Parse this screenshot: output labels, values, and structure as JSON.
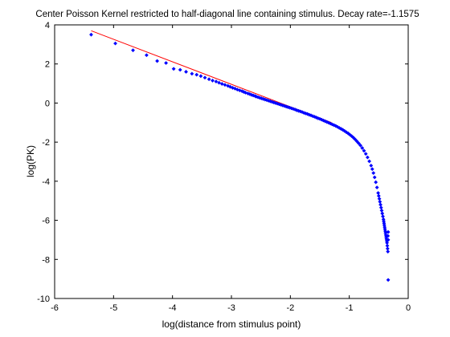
{
  "chart_data": {
    "type": "scatter",
    "title": "Center Poisson Kernel restricted to half-diagonal line containing stimulus.  Decay rate=-1.1575",
    "xlabel": "log(distance from stimulus point)",
    "ylabel": "log(PK)",
    "xlim": [
      -6,
      0
    ],
    "ylim": [
      -10,
      4
    ],
    "xticks": [
      -6,
      -5,
      -4,
      -3,
      -2,
      -1,
      0
    ],
    "yticks": [
      -10,
      -8,
      -6,
      -4,
      -2,
      0,
      2,
      4
    ],
    "grid": false,
    "colors": {
      "points": "#0000ff",
      "fit_line": "#ff0000",
      "axes": "#000000"
    },
    "fit_line": {
      "name": "",
      "x": [
        -5.38,
        -1.3
      ],
      "y": [
        3.7,
        -1.0
      ]
    },
    "series": [
      {
        "name": "",
        "marker": "diamond",
        "x": [
          -5.38,
          -4.97,
          -4.67,
          -4.44,
          -4.26,
          -4.11,
          -3.98,
          -3.87,
          -3.77,
          -3.67,
          -3.59,
          -3.52,
          -3.45,
          -3.38,
          -3.32,
          -3.26,
          -3.21,
          -3.16,
          -3.11,
          -3.06,
          -3.02,
          -2.98,
          -2.94,
          -2.9,
          -2.86,
          -2.82,
          -2.79,
          -2.76,
          -2.72,
          -2.69,
          -2.66,
          -2.63,
          -2.6,
          -2.58,
          -2.55,
          -2.52,
          -2.49,
          -2.46,
          -2.43,
          -2.4,
          -2.37,
          -2.34,
          -2.31,
          -2.28,
          -2.25,
          -2.22,
          -2.19,
          -2.16,
          -2.13,
          -2.1,
          -2.07,
          -2.04,
          -2.01,
          -1.98,
          -1.95,
          -1.92,
          -1.89,
          -1.86,
          -1.83,
          -1.8,
          -1.77,
          -1.74,
          -1.71,
          -1.68,
          -1.65,
          -1.62,
          -1.59,
          -1.56,
          -1.53,
          -1.5,
          -1.47,
          -1.44,
          -1.41,
          -1.38,
          -1.35,
          -1.32,
          -1.29,
          -1.26,
          -1.23,
          -1.2,
          -1.17,
          -1.14,
          -1.11,
          -1.08,
          -1.05,
          -1.02,
          -0.99,
          -0.96,
          -0.93,
          -0.9,
          -0.87,
          -0.84,
          -0.81,
          -0.78,
          -0.75,
          -0.72,
          -0.69,
          -0.66,
          -0.63,
          -0.61,
          -0.59,
          -0.57,
          -0.55,
          -0.53,
          -0.51,
          -0.5,
          -0.49,
          -0.48,
          -0.47,
          -0.46,
          -0.45,
          -0.44,
          -0.43,
          -0.42,
          -0.415,
          -0.41,
          -0.405,
          -0.4,
          -0.395,
          -0.39,
          -0.385,
          -0.38,
          -0.375,
          -0.37,
          -0.365,
          -0.36,
          -0.355,
          -0.35,
          -0.345,
          -0.345,
          -0.34,
          -0.34,
          -0.34
        ],
        "y": [
          3.5,
          3.05,
          2.7,
          2.45,
          2.15,
          2.05,
          1.75,
          1.7,
          1.6,
          1.5,
          1.45,
          1.38,
          1.3,
          1.22,
          1.15,
          1.1,
          1.04,
          0.98,
          0.93,
          0.88,
          0.83,
          0.78,
          0.74,
          0.69,
          0.65,
          0.61,
          0.57,
          0.53,
          0.49,
          0.46,
          0.42,
          0.39,
          0.36,
          0.33,
          0.3,
          0.27,
          0.24,
          0.21,
          0.18,
          0.15,
          0.12,
          0.09,
          0.06,
          0.03,
          0.0,
          -0.03,
          -0.06,
          -0.09,
          -0.12,
          -0.15,
          -0.18,
          -0.21,
          -0.24,
          -0.27,
          -0.3,
          -0.33,
          -0.37,
          -0.4,
          -0.43,
          -0.46,
          -0.5,
          -0.53,
          -0.56,
          -0.6,
          -0.63,
          -0.67,
          -0.7,
          -0.74,
          -0.78,
          -0.81,
          -0.85,
          -0.89,
          -0.93,
          -0.97,
          -1.01,
          -1.05,
          -1.09,
          -1.13,
          -1.17,
          -1.22,
          -1.27,
          -1.32,
          -1.37,
          -1.43,
          -1.49,
          -1.55,
          -1.62,
          -1.69,
          -1.77,
          -1.86,
          -1.96,
          -2.06,
          -2.17,
          -2.3,
          -2.44,
          -2.6,
          -2.78,
          -2.98,
          -3.2,
          -3.38,
          -3.58,
          -3.8,
          -4.05,
          -4.32,
          -4.6,
          -4.75,
          -4.9,
          -5.05,
          -5.2,
          -5.35,
          -5.5,
          -5.65,
          -5.8,
          -5.95,
          -6.05,
          -6.15,
          -6.25,
          -6.35,
          -6.45,
          -6.55,
          -6.65,
          -6.75,
          -6.85,
          -6.95,
          -7.05,
          -7.15,
          -7.3,
          -7.45,
          -7.6,
          -6.8,
          -7.0,
          -6.6,
          -9.05
        ]
      }
    ]
  }
}
